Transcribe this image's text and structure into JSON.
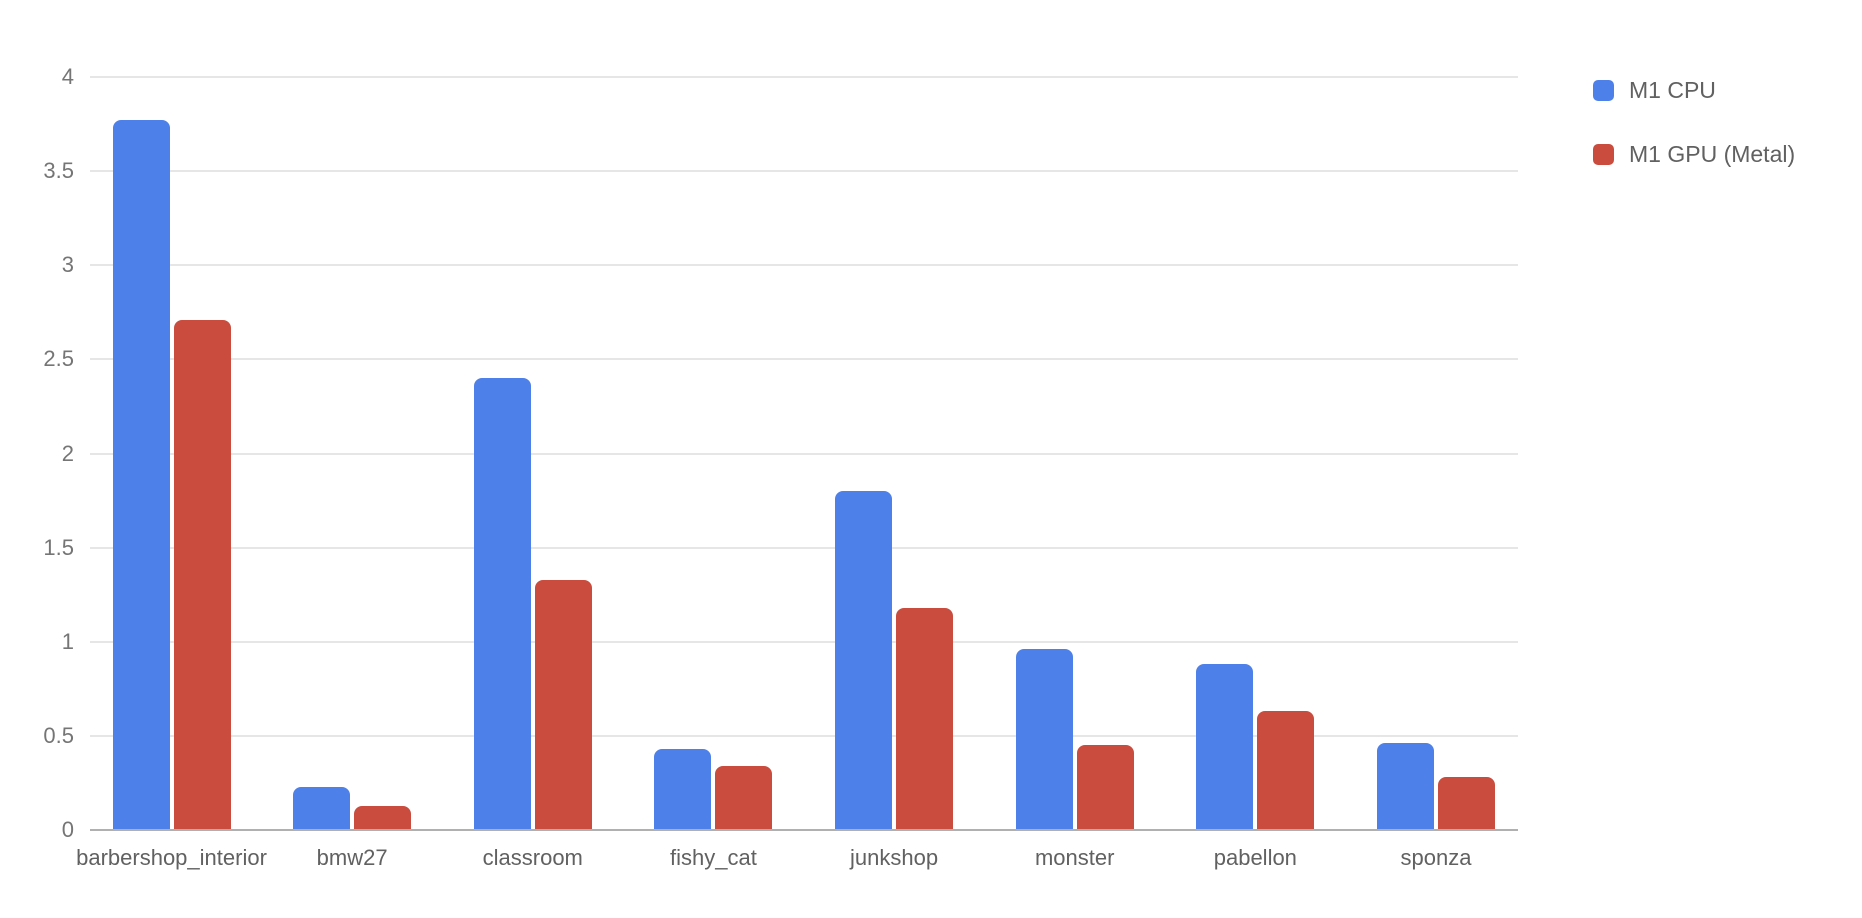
{
  "chart_data": {
    "type": "bar",
    "title": "",
    "xlabel": "",
    "ylabel": "",
    "categories": [
      "barbershop_interior",
      "bmw27",
      "classroom",
      "fishy_cat",
      "junkshop",
      "monster",
      "pabellon",
      "sponza"
    ],
    "series": [
      {
        "name": "M1 CPU",
        "color": "#4d80e8",
        "values": [
          3.77,
          0.23,
          2.4,
          0.43,
          1.8,
          0.96,
          0.88,
          0.46
        ]
      },
      {
        "name": "M1 GPU (Metal)",
        "color": "#c94c3e",
        "values": [
          2.71,
          0.13,
          1.33,
          0.34,
          1.18,
          0.45,
          0.63,
          0.28
        ]
      }
    ],
    "ylim": [
      0,
      4
    ],
    "ytick_step": 0.5,
    "ytick_labels": [
      "0",
      "0.5",
      "1",
      "1.5",
      "2",
      "2.5",
      "3",
      "3.5",
      "4"
    ],
    "grid": true,
    "legend_position": "right",
    "colors": {
      "gridline": "#e6e6e6",
      "axis_line": "#b0b0b0",
      "axis_text": "#757575",
      "category_text": "#616161"
    }
  }
}
